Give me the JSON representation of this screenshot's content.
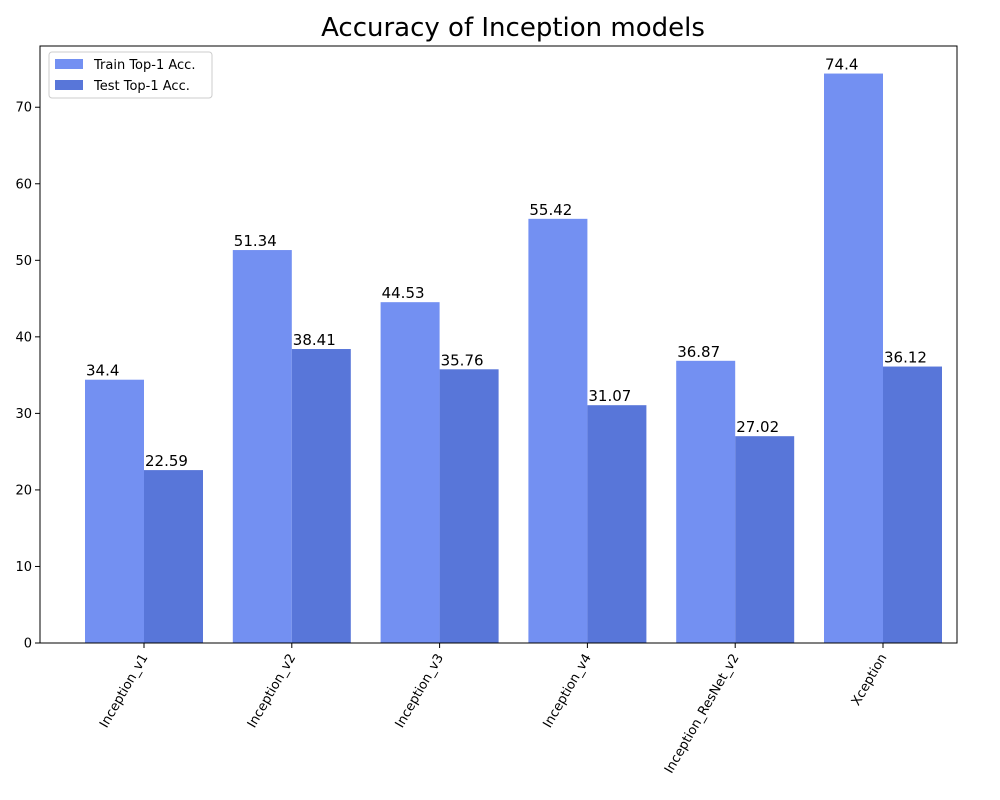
{
  "chart_data": {
    "type": "bar",
    "title": "Accuracy of Inception models",
    "xlabel": "",
    "ylabel": "",
    "categories": [
      "Inception_v1",
      "Inception_v2",
      "Inception_v3",
      "Inception_v4",
      "Inception_ResNet_v2",
      "Xception"
    ],
    "series": [
      {
        "name": "Train Top-1 Acc.",
        "color": "#7390f2",
        "values": [
          34.4,
          51.34,
          44.53,
          55.42,
          36.87,
          74.4
        ],
        "labels": [
          "34.4",
          "51.34",
          "44.53",
          "55.42",
          "36.87",
          "74.4"
        ]
      },
      {
        "name": "Test Top-1 Acc.",
        "color": "#5876d9",
        "values": [
          22.59,
          38.41,
          35.76,
          31.07,
          27.02,
          36.12
        ],
        "labels": [
          "22.59",
          "38.41",
          "35.76",
          "31.07",
          "27.02",
          "36.12"
        ]
      }
    ],
    "ylim": [
      0,
      78
    ],
    "yticks": [
      0,
      10,
      20,
      30,
      40,
      50,
      60,
      70
    ],
    "grid": false,
    "legend_position": "top-left"
  }
}
